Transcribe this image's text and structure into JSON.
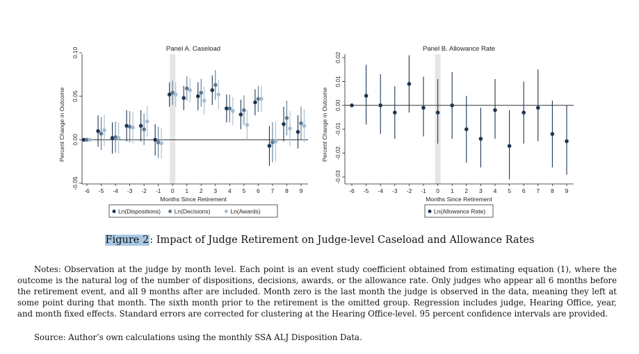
{
  "chart_data": [
    {
      "type": "scatter",
      "title": "Panel A. Caseload",
      "xlabel": "Months Since Retirement",
      "ylabel": "Percent Change in Outcome",
      "x": [
        -6,
        -5,
        -4,
        -3,
        -2,
        -1,
        0,
        1,
        2,
        3,
        4,
        5,
        6,
        7,
        8,
        9
      ],
      "xticks": [
        "-6",
        "-5",
        "-4",
        "-3",
        "-2",
        "-1",
        "0",
        "1",
        "2",
        "3",
        "4",
        "5",
        "6",
        "7",
        "8",
        "9"
      ],
      "yticks": [
        "-0.05",
        "0.00",
        "0.05",
        "0.10"
      ],
      "ylim": [
        -0.05,
        0.1
      ],
      "legend_position": "bottom",
      "series": [
        {
          "name": "Ln(Dispositions)",
          "color": "#1c3550",
          "values": [
            0.0,
            0.01,
            0.002,
            0.016,
            0.016,
            0.0,
            0.052,
            0.048,
            0.05,
            0.057,
            0.036,
            0.029,
            0.043,
            -0.007,
            0.018,
            0.009
          ],
          "ci_low": [
            0.0,
            -0.008,
            -0.016,
            -0.002,
            -0.002,
            -0.018,
            0.038,
            0.034,
            0.034,
            0.04,
            0.02,
            0.012,
            0.028,
            -0.03,
            -0.002,
            -0.01
          ],
          "ci_high": [
            0.0,
            0.028,
            0.02,
            0.034,
            0.034,
            0.018,
            0.066,
            0.062,
            0.066,
            0.074,
            0.052,
            0.046,
            0.058,
            0.016,
            0.038,
            0.028
          ]
        },
        {
          "name": "Ln(Decisions)",
          "color": "#5b7893",
          "values": [
            0.0,
            0.007,
            0.003,
            0.015,
            0.012,
            -0.003,
            0.054,
            0.059,
            0.054,
            0.063,
            0.036,
            0.034,
            0.047,
            -0.003,
            0.025,
            0.019
          ],
          "ci_low": [
            0.0,
            -0.012,
            -0.015,
            -0.003,
            -0.006,
            -0.021,
            0.04,
            0.045,
            0.038,
            0.046,
            0.02,
            0.017,
            0.032,
            -0.026,
            0.005,
            0.0
          ],
          "ci_high": [
            0.0,
            0.026,
            0.021,
            0.033,
            0.03,
            0.015,
            0.068,
            0.073,
            0.07,
            0.08,
            0.052,
            0.051,
            0.062,
            0.02,
            0.045,
            0.038
          ]
        },
        {
          "name": "Ln(Awards)",
          "color": "#a5bcd0",
          "values": [
            0.0,
            0.011,
            0.002,
            0.014,
            0.021,
            -0.004,
            0.052,
            0.057,
            0.045,
            0.052,
            0.033,
            0.017,
            0.047,
            -0.002,
            0.013,
            0.016
          ],
          "ci_low": [
            0.0,
            -0.007,
            -0.016,
            -0.004,
            0.003,
            -0.022,
            0.038,
            0.043,
            0.029,
            0.035,
            0.017,
            0.0,
            0.032,
            -0.025,
            -0.007,
            -0.003
          ],
          "ci_high": [
            0.0,
            0.029,
            0.02,
            0.032,
            0.039,
            0.014,
            0.066,
            0.071,
            0.061,
            0.069,
            0.049,
            0.034,
            0.062,
            0.021,
            0.033,
            0.035
          ]
        }
      ]
    },
    {
      "type": "scatter",
      "title": "Panel B. Allowance Rate",
      "xlabel": "Months Since Retirement",
      "ylabel": "Percent Change in Outcome",
      "x": [
        -6,
        -5,
        -4,
        -3,
        -2,
        -1,
        0,
        1,
        2,
        3,
        4,
        5,
        6,
        7,
        8,
        9
      ],
      "xticks": [
        "-6",
        "-5",
        "-4",
        "-3",
        "-2",
        "-1",
        "0",
        "1",
        "2",
        "3",
        "4",
        "5",
        "6",
        "7",
        "8",
        "9"
      ],
      "yticks": [
        "-0.03",
        "-0.02",
        "-0.01",
        "0.00",
        "0.01",
        "0.02"
      ],
      "ylim": [
        -0.03,
        0.02
      ],
      "legend_position": "bottom",
      "series": [
        {
          "name": "Ln(Allowance Rate)",
          "color": "#1c3550",
          "values": [
            0.0,
            0.004,
            0.0,
            -0.003,
            0.009,
            -0.001,
            -0.003,
            0.0,
            -0.01,
            -0.014,
            -0.002,
            -0.017,
            -0.003,
            -0.001,
            -0.012,
            -0.015
          ],
          "ci_low": [
            0.0,
            -0.008,
            -0.012,
            -0.014,
            -0.003,
            -0.013,
            -0.016,
            -0.014,
            -0.024,
            -0.026,
            -0.014,
            -0.031,
            -0.016,
            -0.015,
            -0.026,
            -0.029
          ],
          "ci_high": [
            0.0,
            0.017,
            0.013,
            0.008,
            0.021,
            0.012,
            0.011,
            0.014,
            0.004,
            -0.001,
            0.011,
            -0.002,
            0.01,
            0.015,
            0.002,
            0.0
          ]
        }
      ]
    }
  ],
  "caption": {
    "label": "Figure 2",
    "text": ": Impact of Judge Retirement on Judge-level Caseload and Allowance Rates"
  },
  "notes": "Notes: Observation at the judge by month level. Each point is an event study coefficient obtained from estimating equation (1), where the outcome is the natural log of the number of dispositions, decisions, awards, or the allowance rate. Only judges who appear all 6 months before the retirement event, and all 9 months after are included. Month zero is the last month the judge is observed in the data, meaning they left at some point during that month. The sixth month prior to the retirement is the omitted group. Regression includes judge, Hearing Office, year, and month fixed effects. Standard errors are corrected for clustering at the Hearing Office-level. 95 percent confidence intervals are provided.",
  "source": "Source: Author’s own calculations using the monthly SSA ALJ Disposition Data."
}
